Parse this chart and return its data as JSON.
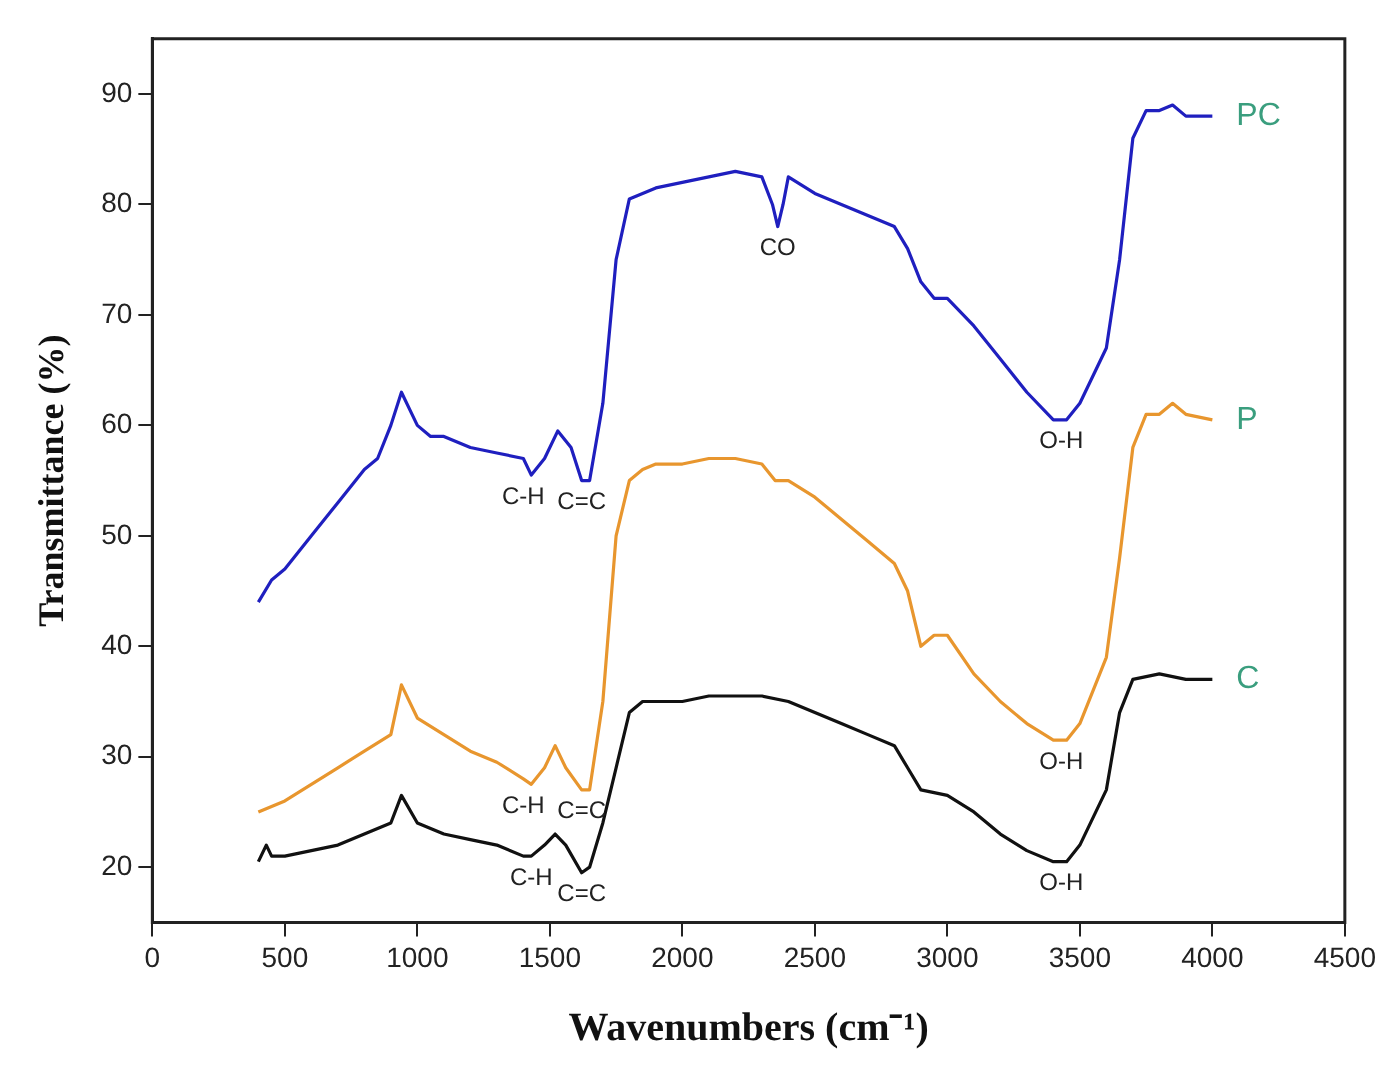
{
  "chart_data": {
    "type": "line",
    "xlabel": "Wavenumbers (cm⁻¹)",
    "ylabel": "Transmittance (%)",
    "xlim": [
      0,
      4500
    ],
    "xticks": [
      0,
      500,
      1000,
      1500,
      2000,
      2500,
      3000,
      3500,
      4000,
      4500
    ],
    "ylim": [
      15,
      95
    ],
    "yticks": [
      20,
      30,
      40,
      50,
      60,
      70,
      80,
      90
    ],
    "grid": false,
    "legend": false,
    "marker": "none",
    "line_style": "solid",
    "series": [
      {
        "name": "PC",
        "color": "#1f1fbf",
        "x": [
          400,
          450,
          500,
          600,
          700,
          800,
          850,
          900,
          940,
          980,
          1000,
          1050,
          1100,
          1200,
          1300,
          1400,
          1430,
          1480,
          1530,
          1580,
          1620,
          1650,
          1700,
          1750,
          1800,
          1850,
          1900,
          2000,
          2100,
          2200,
          2300,
          2340,
          2360,
          2380,
          2400,
          2500,
          2600,
          2700,
          2800,
          2850,
          2900,
          2950,
          3000,
          3100,
          3200,
          3300,
          3400,
          3450,
          3500,
          3600,
          3650,
          3700,
          3750,
          3800,
          3850,
          3900,
          4000
        ],
        "values": [
          44,
          46,
          47,
          50,
          53,
          56,
          57,
          60,
          63,
          61,
          60,
          59,
          59,
          58,
          57.5,
          57,
          55.5,
          57,
          59.5,
          58,
          55,
          55,
          62,
          75,
          80.5,
          81,
          81.5,
          82,
          82.5,
          83,
          82.5,
          80,
          78,
          80,
          82.5,
          81,
          80,
          79,
          78,
          76,
          73,
          71.5,
          71.5,
          69,
          66,
          63,
          60.5,
          60.5,
          62,
          67,
          75,
          86,
          88.5,
          88.5,
          89,
          88,
          88
        ]
      },
      {
        "name": "P",
        "color": "#e8962e",
        "x": [
          400,
          450,
          500,
          600,
          700,
          800,
          900,
          940,
          1000,
          1100,
          1200,
          1300,
          1400,
          1430,
          1480,
          1520,
          1560,
          1620,
          1650,
          1700,
          1750,
          1800,
          1850,
          1900,
          2000,
          2100,
          2200,
          2300,
          2350,
          2400,
          2500,
          2600,
          2700,
          2800,
          2850,
          2900,
          2950,
          3000,
          3100,
          3200,
          3300,
          3400,
          3450,
          3500,
          3600,
          3650,
          3700,
          3750,
          3800,
          3850,
          3900,
          4000
        ],
        "values": [
          25,
          25.5,
          26,
          27.5,
          29,
          30.5,
          32,
          36.5,
          33.5,
          32,
          30.5,
          29.5,
          28,
          27.5,
          29,
          31,
          29,
          27,
          27,
          35,
          50,
          55,
          56,
          56.5,
          56.5,
          57,
          57,
          56.5,
          55,
          55,
          53.5,
          51.5,
          49.5,
          47.5,
          45,
          40,
          41,
          41,
          37.5,
          35,
          33,
          31.5,
          31.5,
          33,
          39,
          48,
          58,
          61,
          61,
          62,
          61,
          60.5
        ]
      },
      {
        "name": "C",
        "color": "#111111",
        "x": [
          400,
          430,
          450,
          500,
          600,
          700,
          800,
          900,
          940,
          1000,
          1100,
          1200,
          1300,
          1400,
          1430,
          1480,
          1520,
          1560,
          1620,
          1650,
          1700,
          1750,
          1800,
          1850,
          1900,
          2000,
          2100,
          2200,
          2300,
          2400,
          2500,
          2600,
          2700,
          2800,
          2850,
          2900,
          3000,
          3100,
          3200,
          3300,
          3400,
          3450,
          3500,
          3600,
          3650,
          3700,
          3800,
          3900,
          4000
        ],
        "values": [
          20.5,
          22,
          21,
          21,
          21.5,
          22,
          23,
          24,
          26.5,
          24,
          23,
          22.5,
          22,
          21,
          21,
          22,
          23,
          22,
          19.5,
          20,
          24,
          29,
          34,
          35,
          35,
          35,
          35.5,
          35.5,
          35.5,
          35,
          34,
          33,
          32,
          31,
          29,
          27,
          26.5,
          25,
          23,
          21.5,
          20.5,
          20.5,
          22,
          27,
          34,
          37,
          37.5,
          37,
          37
        ]
      }
    ],
    "annotations": [
      {
        "text": "C-H",
        "x": 1400,
        "y": 55.5
      },
      {
        "text": "C=C",
        "x": 1620,
        "y": 55
      },
      {
        "text": "CO",
        "x": 2360,
        "y": 78
      },
      {
        "text": "O-H",
        "x": 3430,
        "y": 60.5
      },
      {
        "text": "C-H",
        "x": 1400,
        "y": 27.5
      },
      {
        "text": "C=C",
        "x": 1620,
        "y": 27
      },
      {
        "text": "O-H",
        "x": 3430,
        "y": 31.5
      },
      {
        "text": "C-H",
        "x": 1430,
        "y": 21
      },
      {
        "text": "C=C",
        "x": 1620,
        "y": 19.5
      },
      {
        "text": "O-H",
        "x": 3430,
        "y": 20.5
      }
    ]
  }
}
